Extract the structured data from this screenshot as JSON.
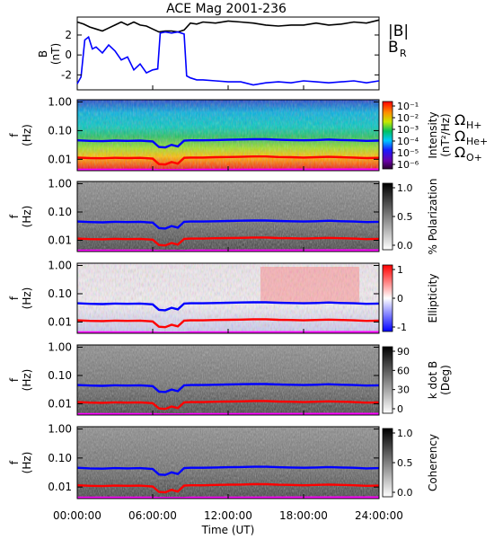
{
  "chart_data": {
    "type": "spectrogram-stack",
    "title": "ACE Mag 2001-236",
    "time_axis": {
      "label": "Time (UT)",
      "range_hours": [
        0,
        24
      ],
      "ticks_hours": [
        0,
        6,
        12,
        18,
        24
      ],
      "tick_labels": [
        "00:00:00",
        "06:00:00",
        "12:00:00",
        "18:00:00",
        "24:00:00"
      ]
    },
    "field_panel": {
      "ylabel": "B",
      "yunit": "(nT)",
      "ylim": [
        -3.5,
        3.8
      ],
      "ytick_values": [
        2,
        0,
        -2
      ],
      "ytick_labels": [
        "2",
        "0",
        "-2"
      ],
      "series": [
        {
          "name": "|B|",
          "color": "#000000",
          "t": [
            0,
            0.5,
            1,
            1.5,
            2,
            2.5,
            3,
            3.5,
            4,
            4.5,
            5,
            5.5,
            6,
            6.5,
            7,
            7.5,
            8,
            8.5,
            9,
            9.5,
            10,
            11,
            12,
            13,
            14,
            15,
            16,
            17,
            18,
            19,
            20,
            21,
            22,
            23,
            24
          ],
          "v": [
            3.3,
            3.1,
            2.8,
            2.6,
            2.4,
            2.7,
            3.0,
            3.3,
            3.0,
            3.3,
            3.0,
            2.9,
            2.6,
            2.3,
            2.4,
            2.4,
            2.3,
            2.5,
            3.2,
            3.1,
            3.3,
            3.2,
            3.4,
            3.3,
            3.2,
            3.0,
            2.9,
            3.0,
            3.0,
            3.2,
            3.0,
            3.1,
            3.3,
            3.2,
            3.5
          ]
        },
        {
          "name": "B_R",
          "color": "#0000ff",
          "t": [
            0,
            0.3,
            0.6,
            0.9,
            1.2,
            1.5,
            2,
            2.5,
            3,
            3.5,
            4,
            4.5,
            5,
            5.5,
            6,
            6.4,
            6.6,
            7,
            7.5,
            8,
            8.5,
            8.7,
            9,
            9.5,
            10,
            11,
            12,
            13,
            14,
            15,
            16,
            17,
            18,
            19,
            20,
            21,
            22,
            23,
            24
          ],
          "v": [
            -2.9,
            -2.2,
            1.5,
            1.8,
            0.6,
            0.8,
            0.2,
            1.0,
            0.4,
            -0.5,
            -0.2,
            -1.5,
            -0.9,
            -1.8,
            -1.5,
            -1.4,
            2.2,
            2.3,
            2.2,
            2.3,
            2.1,
            -2.1,
            -2.3,
            -2.5,
            -2.5,
            -2.6,
            -2.7,
            -2.7,
            -3.0,
            -2.8,
            -2.7,
            -2.8,
            -2.6,
            -2.7,
            -2.8,
            -2.7,
            -2.6,
            -2.8,
            -2.6
          ]
        }
      ]
    },
    "spectral_panels": [
      {
        "id": "intensity",
        "ylabel": "f",
        "yunit": "(Hz)",
        "colorbar_label": "Intensity",
        "colorbar_unit": "(nT²/Hz)",
        "colorbar_scale": "log",
        "colorbar_ticks": [
          "10⁻¹",
          "10⁻²",
          "10⁻³",
          "10⁻⁴",
          "10⁻⁵",
          "10⁻⁶"
        ],
        "colormap": "rainbow"
      },
      {
        "id": "polarization",
        "ylabel": "f",
        "yunit": "(Hz)",
        "colorbar_label": "% Polarization",
        "colorbar_ticks": [
          "1.0",
          "0.5",
          "0.0"
        ],
        "colormap": "gray-inverted"
      },
      {
        "id": "ellipticity",
        "ylabel": "f",
        "yunit": "(Hz)",
        "colorbar_label": "Ellipticity",
        "colorbar_ticks": [
          "1",
          "0",
          "-1"
        ],
        "colormap": "blue-white-red"
      },
      {
        "id": "kdotb",
        "ylabel": "f",
        "yunit": "(Hz)",
        "colorbar_label": "k dot B",
        "colorbar_unit": "(Deg)",
        "colorbar_ticks": [
          "90",
          "60",
          "30",
          "0"
        ],
        "colormap": "gray-inverted"
      },
      {
        "id": "coherency",
        "ylabel": "f",
        "yunit": "(Hz)",
        "colorbar_label": "Coherency",
        "colorbar_ticks": [
          "1.0",
          "0.5",
          "0.0"
        ],
        "colormap": "gray-inverted"
      }
    ],
    "frequency_axis": {
      "scale": "log",
      "range_hz": [
        0.004,
        1.2
      ],
      "tick_values": [
        1.0,
        0.1,
        0.01
      ],
      "tick_labels": [
        "1.00",
        "0.10",
        "0.01"
      ]
    },
    "gyrofrequency_legend": [
      {
        "label": "Ω",
        "sub": "H+",
        "color": "#0000ff"
      },
      {
        "label": "Ω",
        "sub": "He+",
        "color": "#ff0000"
      },
      {
        "label": "Ω",
        "sub": "O+",
        "color": "#ff00ff"
      }
    ],
    "field_legend": [
      {
        "label": "|B|",
        "color": "#000000"
      },
      {
        "label": "B",
        "sub": "R",
        "color": "#0000ff"
      }
    ],
    "gyrofrequency_lines": [
      {
        "name": "H+",
        "color": "#0000ff",
        "t": [
          0,
          1,
          2,
          3,
          4,
          5,
          6,
          6.5,
          7,
          7.5,
          8,
          8.5,
          9,
          10,
          11,
          12,
          13,
          14,
          15,
          16,
          17,
          18,
          19,
          20,
          21,
          22,
          23,
          24
        ],
        "f": [
          0.046,
          0.044,
          0.043,
          0.045,
          0.044,
          0.045,
          0.042,
          0.027,
          0.026,
          0.032,
          0.028,
          0.045,
          0.046,
          0.046,
          0.047,
          0.048,
          0.049,
          0.05,
          0.05,
          0.048,
          0.047,
          0.046,
          0.047,
          0.049,
          0.047,
          0.046,
          0.044,
          0.045
        ]
      },
      {
        "name": "He+",
        "color": "#ff0000",
        "t": [
          0,
          1,
          2,
          3,
          4,
          5,
          6,
          6.5,
          7,
          7.5,
          8,
          8.5,
          9,
          10,
          11,
          12,
          13,
          14,
          15,
          16,
          17,
          18,
          19,
          20,
          21,
          22,
          23,
          24
        ],
        "f": [
          0.0115,
          0.011,
          0.0108,
          0.0112,
          0.011,
          0.0112,
          0.0105,
          0.0068,
          0.0066,
          0.008,
          0.007,
          0.0112,
          0.0115,
          0.0115,
          0.0118,
          0.012,
          0.0122,
          0.0125,
          0.0125,
          0.012,
          0.0118,
          0.0115,
          0.0118,
          0.0122,
          0.0118,
          0.0115,
          0.011,
          0.0112
        ]
      },
      {
        "name": "O+",
        "color": "#ff00ff",
        "t": [
          0,
          6,
          6.5,
          8.5,
          9,
          24
        ],
        "f": [
          0.0043,
          0.0043,
          0.0042,
          0.0042,
          0.0043,
          0.0044
        ]
      }
    ]
  }
}
